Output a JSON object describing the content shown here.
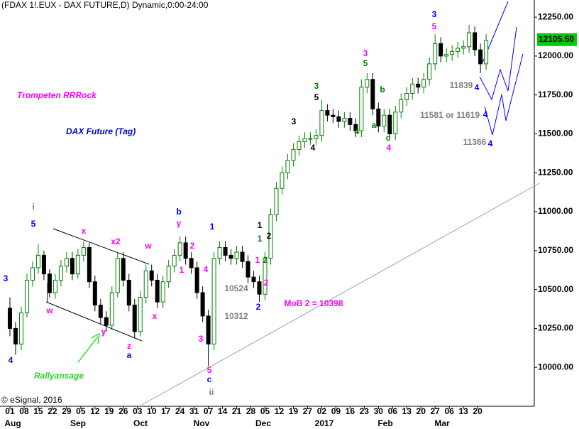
{
  "chart_data": {
    "type": "candlestick",
    "title": "(FDAX 1!.EUX - DAX FUTURE,D) Dynamic,0:00-24:00",
    "headline": "Trompeten RRRock",
    "subtitle": "DAX Future (Tag)",
    "callout": "Rallyansage",
    "copyright": "© eSignal, 2016",
    "up_color": "#008000",
    "down_color": "#000000",
    "x": [
      0,
      2,
      4,
      6,
      8,
      10,
      12,
      14,
      16,
      18,
      20,
      22,
      24,
      26,
      28,
      30,
      32,
      34,
      36,
      38,
      40,
      42,
      44,
      46,
      48,
      50,
      52,
      54,
      56,
      58,
      60,
      62,
      64,
      66,
      68,
      70,
      72,
      74,
      76,
      78,
      80,
      82,
      84,
      86,
      88,
      90,
      92,
      94,
      96,
      98,
      100,
      102,
      104,
      106,
      108,
      110,
      112,
      114,
      116,
      118,
      120,
      122,
      124,
      126,
      128,
      130,
      132,
      134,
      136,
      138,
      140,
      142,
      144,
      146,
      148,
      150,
      152,
      154,
      156,
      158,
      160,
      162,
      164,
      166,
      168
    ],
    "open": [
      10380,
      10250,
      10150,
      10350,
      10560,
      10640,
      10720,
      10600,
      10480,
      10560,
      10650,
      10700,
      10600,
      10720,
      10770,
      10550,
      10400,
      10320,
      10270,
      10480,
      10700,
      10560,
      10400,
      10230,
      10450,
      10620,
      10560,
      10420,
      10550,
      10650,
      10720,
      10800,
      10700,
      10640,
      10480,
      10330,
      10150,
      10700,
      10770,
      10720,
      10700,
      10740,
      10680,
      10580,
      10550,
      10470,
      10700,
      10980,
      11150,
      11250,
      11330,
      11400,
      11450,
      11470,
      11470,
      11490,
      11650,
      11620,
      11610,
      11580,
      11600,
      11560,
      11520,
      11800,
      11850,
      11660,
      11550,
      11620,
      11500,
      11640,
      11720,
      11760,
      11820,
      11800,
      11850,
      11950,
      12080,
      12000,
      12010,
      12030,
      12050,
      12060,
      12150,
      12040,
      11950
    ],
    "high": [
      10450,
      10290,
      10390,
      10600,
      10680,
      10790,
      10750,
      10630,
      10600,
      10690,
      10740,
      10740,
      10760,
      10810,
      10800,
      10590,
      10440,
      10360,
      10520,
      10740,
      10740,
      10600,
      10440,
      10490,
      10660,
      10660,
      10600,
      10590,
      10690,
      10760,
      10840,
      10840,
      10740,
      10680,
      10520,
      10370,
      10740,
      10810,
      10810,
      10760,
      10780,
      10780,
      10720,
      10620,
      10590,
      10740,
      11020,
      11190,
      11290,
      11370,
      11440,
      11490,
      11510,
      11510,
      11530,
      11720,
      11690,
      11660,
      11650,
      11640,
      11640,
      11600,
      11850,
      11890,
      11890,
      11700,
      11660,
      11660,
      11680,
      11760,
      11800,
      11860,
      11860,
      11890,
      11990,
      12140,
      12120,
      12050,
      12070,
      12090,
      12100,
      12200,
      12190,
      12080,
      12140
    ],
    "low": [
      10200,
      10080,
      10110,
      10320,
      10520,
      10600,
      10560,
      10450,
      10440,
      10520,
      10610,
      10560,
      10570,
      10680,
      10510,
      10360,
      10280,
      10230,
      10240,
      10450,
      10520,
      10360,
      10190,
      10200,
      10410,
      10520,
      10380,
      10380,
      10510,
      10610,
      10680,
      10660,
      10600,
      10440,
      10290,
      10010,
      10110,
      10660,
      10680,
      10660,
      10660,
      10640,
      10540,
      10510,
      10420,
      10430,
      10660,
      10940,
      11110,
      11210,
      11290,
      11360,
      11410,
      11430,
      11430,
      11450,
      11580,
      11570,
      11540,
      11540,
      11520,
      11480,
      11480,
      11760,
      11620,
      11510,
      11510,
      11460,
      11460,
      11600,
      11680,
      11720,
      11760,
      11760,
      11810,
      11910,
      11960,
      11960,
      11970,
      11990,
      12010,
      12020,
      12000,
      11890,
      11910
    ],
    "close": [
      10250,
      10150,
      10350,
      10560,
      10640,
      10720,
      10600,
      10480,
      10560,
      10650,
      10700,
      10600,
      10720,
      10770,
      10550,
      10400,
      10320,
      10270,
      10480,
      10700,
      10560,
      10400,
      10230,
      10450,
      10620,
      10560,
      10420,
      10550,
      10650,
      10720,
      10800,
      10700,
      10640,
      10480,
      10330,
      10150,
      10700,
      10770,
      10720,
      10700,
      10740,
      10680,
      10580,
      10550,
      10470,
      10700,
      10980,
      11150,
      11250,
      11330,
      11400,
      11450,
      11470,
      11470,
      11490,
      11650,
      11620,
      11610,
      11580,
      11600,
      11560,
      11520,
      11800,
      11850,
      11660,
      11550,
      11620,
      11500,
      11640,
      11720,
      11760,
      11820,
      11800,
      11850,
      11950,
      12080,
      12000,
      12010,
      12030,
      12050,
      12060,
      12150,
      12040,
      11950,
      12100
    ],
    "last_price": {
      "value": 12105.5,
      "label": "12105.50"
    },
    "xlim": [
      -3.5,
      185
    ],
    "ylim": [
      9750,
      12360
    ],
    "xticks": [
      {
        "value": 0,
        "label": "01"
      },
      {
        "value": 5,
        "label": "08"
      },
      {
        "value": 10,
        "label": "15"
      },
      {
        "value": 15,
        "label": "22"
      },
      {
        "value": 20,
        "label": "29"
      },
      {
        "value": 25,
        "label": "05"
      },
      {
        "value": 30,
        "label": "12"
      },
      {
        "value": 35,
        "label": "19"
      },
      {
        "value": 40,
        "label": "26"
      },
      {
        "value": 45,
        "label": "03"
      },
      {
        "value": 50,
        "label": "10"
      },
      {
        "value": 55,
        "label": "17"
      },
      {
        "value": 60,
        "label": "24"
      },
      {
        "value": 65,
        "label": "31"
      },
      {
        "value": 70,
        "label": "07"
      },
      {
        "value": 75,
        "label": "14"
      },
      {
        "value": 80,
        "label": "21"
      },
      {
        "value": 85,
        "label": "28"
      },
      {
        "value": 90,
        "label": "05"
      },
      {
        "value": 95,
        "label": "12"
      },
      {
        "value": 100,
        "label": "19"
      },
      {
        "value": 105,
        "label": "27"
      },
      {
        "value": 110,
        "label": "02"
      },
      {
        "value": 115,
        "label": "09"
      },
      {
        "value": 120,
        "label": "16"
      },
      {
        "value": 125,
        "label": "23"
      },
      {
        "value": 130,
        "label": "30"
      },
      {
        "value": 135,
        "label": "06"
      },
      {
        "value": 140,
        "label": "13"
      },
      {
        "value": 145,
        "label": "20"
      },
      {
        "value": 150,
        "label": "27"
      },
      {
        "value": 155,
        "label": "06"
      },
      {
        "value": 160,
        "label": "13"
      },
      {
        "value": 165,
        "label": "20"
      }
    ],
    "month_labels": [
      "Aug",
      "Sep",
      "Oct",
      "Nov",
      "Dec",
      "2017",
      "Feb",
      "Mar"
    ],
    "yticks": [
      {
        "value": 10000,
        "label": "10000.00"
      },
      {
        "value": 10250,
        "label": "10250.00"
      },
      {
        "value": 10500,
        "label": "10500.00"
      },
      {
        "value": 10750,
        "label": "10750.00"
      },
      {
        "value": 11000,
        "label": "11000.00"
      },
      {
        "value": 11250,
        "label": "11250.00"
      },
      {
        "value": 11500,
        "label": "11500.00"
      },
      {
        "value": 11750,
        "label": "11750.00"
      },
      {
        "value": 12000,
        "label": "12000.00"
      },
      {
        "value": 12250,
        "label": "12250.00"
      }
    ],
    "annotations": [
      {
        "text": "i",
        "color": "#808080"
      },
      {
        "text": "5",
        "color": "#0000ff"
      },
      {
        "text": "3",
        "color": "#0000ff"
      },
      {
        "text": "4",
        "color": "#0000ff"
      },
      {
        "text": "w",
        "color": "#ff00ff"
      },
      {
        "text": "x",
        "color": "#ff00ff"
      },
      {
        "text": "y",
        "color": "#ff00ff"
      },
      {
        "text": "x2",
        "color": "#ff00ff"
      },
      {
        "text": "w",
        "color": "#ff00ff"
      },
      {
        "text": "x",
        "color": "#ff00ff"
      },
      {
        "text": "z",
        "color": "#ff00ff"
      },
      {
        "text": "a",
        "color": "#0000ff"
      },
      {
        "text": "b",
        "color": "#0000ff"
      },
      {
        "text": "y",
        "color": "#ff00ff"
      },
      {
        "text": "2",
        "color": "#ff00ff"
      },
      {
        "text": "1",
        "color": "#ff00ff"
      },
      {
        "text": "4",
        "color": "#ff00ff"
      },
      {
        "text": "3",
        "color": "#ff00ff"
      },
      {
        "text": "1",
        "color": "#0000ff"
      },
      {
        "text": "5",
        "color": "#ff00ff"
      },
      {
        "text": "c",
        "color": "#0000ff"
      },
      {
        "text": "ii",
        "color": "#808080"
      },
      {
        "text": "10524",
        "color": "#808080"
      },
      {
        "text": "10312",
        "color": "#808080"
      },
      {
        "text": "1",
        "color": "#000000"
      },
      {
        "text": "2",
        "color": "#000000"
      },
      {
        "text": "1",
        "color": "#008000"
      },
      {
        "text": "2",
        "color": "#008000"
      },
      {
        "text": "1",
        "color": "#ff00ff"
      },
      {
        "text": "2",
        "color": "#ff00ff"
      },
      {
        "text": "2",
        "color": "#0000ff"
      },
      {
        "text": "MoB 2 = 10398",
        "color": "#ff00ff"
      },
      {
        "text": "3",
        "color": "#000000"
      },
      {
        "text": "4",
        "color": "#000000"
      },
      {
        "text": "3",
        "color": "#008000"
      },
      {
        "text": "5",
        "color": "#000000"
      },
      {
        "text": "4",
        "color": "#008000"
      },
      {
        "text": "3",
        "color": "#ff00ff"
      },
      {
        "text": "5",
        "color": "#008000"
      },
      {
        "text": "b",
        "color": "#008000"
      },
      {
        "text": "a",
        "color": "#008000"
      },
      {
        "text": "c",
        "color": "#008000"
      },
      {
        "text": "4",
        "color": "#ff00ff"
      },
      {
        "text": "3",
        "color": "#0000ff"
      },
      {
        "text": "5",
        "color": "#ff00ff"
      },
      {
        "text": "11839",
        "color": "#808080"
      },
      {
        "text": "4",
        "color": "#0000ff"
      },
      {
        "text": "11581 or 11619",
        "color": "#808080"
      },
      {
        "text": "4",
        "color": "#0000ff"
      },
      {
        "text": "11366",
        "color": "#808080"
      },
      {
        "text": "4",
        "color": "#0000ff"
      }
    ]
  }
}
